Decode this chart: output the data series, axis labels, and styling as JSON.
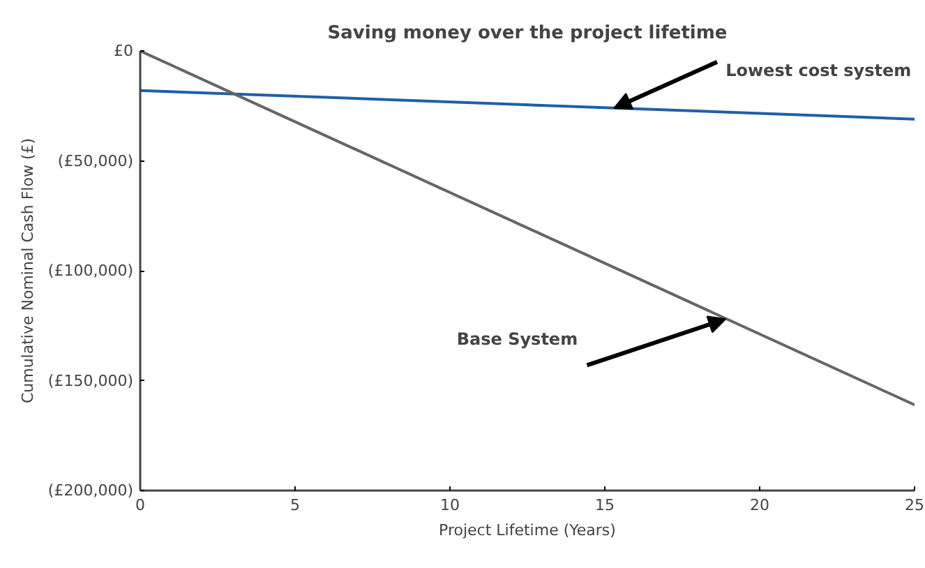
{
  "chart_data": {
    "type": "line",
    "title": "Saving money over the project lifetime",
    "xlabel": "Project Lifetime (Years)",
    "ylabel": "Cumulative Nominal Cash Flow (£)",
    "x": [
      0,
      25
    ],
    "series": [
      {
        "color": "#1f5fa8",
        "values": [
          -18000,
          -31000
        ]
      },
      {
        "color": "#666666",
        "values": [
          0,
          -161000
        ]
      }
    ],
    "annotations": [
      {
        "text": "Lowest cost system",
        "x": 15.3,
        "y": -26000
      },
      {
        "text": "Base System",
        "x": 18.9,
        "y": -122000
      }
    ],
    "xlim": [
      0,
      25
    ],
    "xticks": [
      0,
      5,
      10,
      15,
      20,
      25
    ],
    "ylim": [
      -200000,
      0
    ],
    "yticks": [
      {
        "value": 0,
        "label": "£0"
      },
      {
        "value": -50000,
        "label": "(£50,000)"
      },
      {
        "value": -100000,
        "label": "(£100,000)"
      },
      {
        "value": -150000,
        "label": "(£150,000)"
      },
      {
        "value": -200000,
        "label": "(£200,000)"
      }
    ],
    "grid": false
  }
}
